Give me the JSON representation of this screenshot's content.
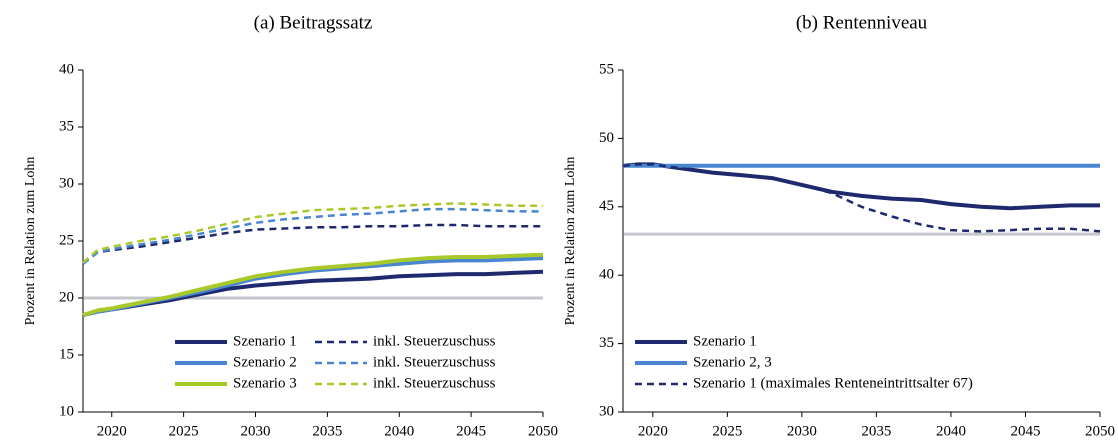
{
  "chart_data": [
    {
      "type": "line",
      "title": "(a) Beitragssatz",
      "y_label": "Prozent in Relation zum Lohn",
      "x": [
        2018,
        2019,
        2020,
        2022,
        2024,
        2026,
        2028,
        2030,
        2032,
        2034,
        2036,
        2038,
        2040,
        2042,
        2044,
        2046,
        2048,
        2050
      ],
      "xlim": [
        2018,
        2050
      ],
      "xticks": [
        2020,
        2025,
        2030,
        2035,
        2040,
        2045,
        2050
      ],
      "ylim": [
        10,
        40
      ],
      "yticks": [
        10,
        15,
        20,
        25,
        30,
        35,
        40
      ],
      "hline": {
        "value": 20,
        "color": "#c3c6ca"
      },
      "legend": "lower right",
      "legend_ncol": 2,
      "series": [
        {
          "name": "Szenario 1",
          "color": "#1f2a6e",
          "dash": false,
          "values": [
            18.5,
            18.8,
            19.0,
            19.4,
            19.8,
            20.3,
            20.8,
            21.1,
            21.3,
            21.5,
            21.6,
            21.7,
            21.9,
            22.0,
            22.1,
            22.1,
            22.2,
            22.3
          ]
        },
        {
          "name": "Szenario 2",
          "color": "#4a86d0",
          "dash": false,
          "values": [
            18.5,
            18.8,
            19.0,
            19.5,
            20.0,
            20.5,
            21.1,
            21.7,
            22.1,
            22.4,
            22.6,
            22.8,
            23.0,
            23.2,
            23.3,
            23.3,
            23.4,
            23.5
          ]
        },
        {
          "name": "Szenario 3",
          "color": "#a8c92a",
          "dash": false,
          "values": [
            18.5,
            18.9,
            19.1,
            19.6,
            20.1,
            20.7,
            21.3,
            21.9,
            22.3,
            22.6,
            22.8,
            23.0,
            23.3,
            23.5,
            23.6,
            23.6,
            23.7,
            23.8
          ]
        },
        {
          "name": "inkl. Steuerzuschuss",
          "color": "#1f2a6e",
          "dash": true,
          "values": [
            23.0,
            24.0,
            24.2,
            24.5,
            24.9,
            25.3,
            25.7,
            26.0,
            26.1,
            26.2,
            26.2,
            26.3,
            26.3,
            26.4,
            26.4,
            26.3,
            26.3,
            26.3
          ]
        },
        {
          "name": "inkl. Steuerzuschuss",
          "color": "#4a86d0",
          "dash": true,
          "values": [
            23.0,
            24.0,
            24.3,
            24.7,
            25.1,
            25.6,
            26.1,
            26.6,
            26.9,
            27.1,
            27.3,
            27.4,
            27.6,
            27.8,
            27.8,
            27.7,
            27.6,
            27.6
          ]
        },
        {
          "name": "inkl. Steuerzuschuss",
          "color": "#a8c92a",
          "dash": true,
          "values": [
            23.1,
            24.2,
            24.5,
            25.0,
            25.4,
            25.9,
            26.5,
            27.1,
            27.4,
            27.7,
            27.8,
            27.9,
            28.1,
            28.2,
            28.3,
            28.2,
            28.1,
            28.1
          ]
        }
      ]
    },
    {
      "type": "line",
      "title": "(b) Rentenniveau",
      "y_label": "Prozent in Relation zum Lohn",
      "x": [
        2018,
        2019,
        2020,
        2022,
        2024,
        2026,
        2028,
        2030,
        2032,
        2034,
        2036,
        2038,
        2040,
        2042,
        2044,
        2046,
        2048,
        2050
      ],
      "xlim": [
        2018,
        2050
      ],
      "xticks": [
        2020,
        2025,
        2030,
        2035,
        2040,
        2045,
        2050
      ],
      "ylim": [
        30,
        55
      ],
      "yticks": [
        30,
        35,
        40,
        45,
        50,
        55
      ],
      "hline": {
        "value": 43,
        "color": "#c3c6ca"
      },
      "legend": "lower left",
      "legend_ncol": 1,
      "series": [
        {
          "name": "Szenario 1",
          "color": "#1f2a6e",
          "dash": false,
          "values": [
            48.0,
            48.1,
            48.1,
            47.8,
            47.5,
            47.3,
            47.1,
            46.6,
            46.1,
            45.8,
            45.6,
            45.5,
            45.2,
            45.0,
            44.9,
            45.0,
            45.1,
            45.1
          ]
        },
        {
          "name": "Szenario 2, 3",
          "color": "#4a86d0",
          "dash": false,
          "values": [
            48.0,
            48.0,
            48.0,
            48.0,
            48.0,
            48.0,
            48.0,
            48.0,
            48.0,
            48.0,
            48.0,
            48.0,
            48.0,
            48.0,
            48.0,
            48.0,
            48.0,
            48.0
          ]
        },
        {
          "name": "Szenario 1 (maximales Renteneintrittsalter 67)",
          "color": "#1f2a6e",
          "dash": true,
          "values": [
            48.0,
            48.1,
            48.1,
            47.8,
            47.5,
            47.3,
            47.1,
            46.6,
            46.0,
            45.0,
            44.3,
            43.7,
            43.3,
            43.2,
            43.3,
            43.4,
            43.4,
            43.2
          ]
        }
      ]
    }
  ]
}
